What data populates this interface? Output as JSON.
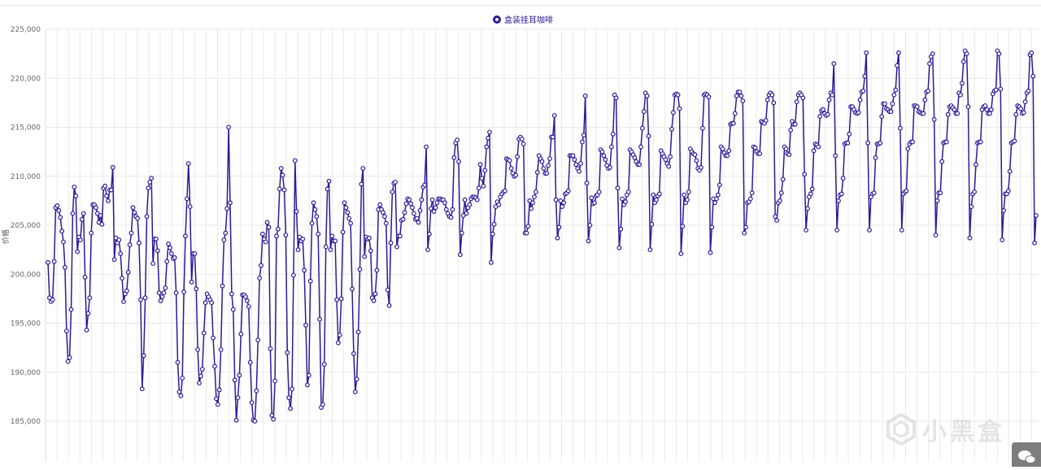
{
  "legend": {
    "label": "盒装挂耳咖啡"
  },
  "watermark": {
    "text": "小黑盒"
  },
  "colors": {
    "series": "#2a1b97",
    "grid": "#e9e9e9",
    "axis_text": "#666666"
  },
  "chart_data": {
    "type": "line",
    "title": "",
    "xlabel": "",
    "ylabel": "价格",
    "ylim": [
      180500,
      225000
    ],
    "y_ticks": [
      "185,000",
      "190,000",
      "195,000",
      "200,000",
      "205,000",
      "210,000",
      "215,000",
      "220,000",
      "225,000"
    ],
    "grid": true,
    "legend_position": "top-center",
    "series": [
      {
        "name": "盒装挂耳咖啡",
        "values": [
          201200,
          197600,
          197200,
          197400,
          201300,
          206800,
          207000,
          206500,
          205800,
          204400,
          203300,
          200700,
          194200,
          191100,
          191500,
          196400,
          206200,
          208900,
          208000,
          202300,
          203800,
          203500,
          205600,
          206200,
          199700,
          194300,
          196000,
          197600,
          204200,
          207100,
          207100,
          206800,
          206200,
          205300,
          206000,
          205100,
          208800,
          209000,
          208000,
          207500,
          208600,
          208600,
          210900,
          201500,
          203700,
          203200,
          203500,
          202100,
          199600,
          197200,
          198000,
          198300,
          200200,
          203000,
          204200,
          206800,
          206300,
          205900,
          205700,
          203200,
          197400,
          188300,
          191700,
          197600,
          205900,
          208800,
          209400,
          209800,
          201100,
          203600,
          203600,
          202400,
          198100,
          197300,
          197700,
          198100,
          198600,
          201300,
          203100,
          202700,
          202100,
          201600,
          201700,
          198100,
          191000,
          188000,
          187600,
          189400,
          198200,
          203900,
          207700,
          211300,
          206900,
          199200,
          202100,
          202100,
          198500,
          192300,
          188900,
          189600,
          190300,
          194000,
          197100,
          198000,
          197700,
          197400,
          197100,
          193500,
          190600,
          187300,
          186700,
          188200,
          192300,
          198800,
          203500,
          204200,
          206700,
          215000,
          207300,
          198000,
          196400,
          189200,
          185100,
          187400,
          189700,
          193900,
          197900,
          197900,
          197700,
          197300,
          196700,
          191000,
          186900,
          185100,
          185000,
          188100,
          193300,
          199600,
          200900,
          204100,
          203600,
          203300,
          205300,
          204800,
          192400,
          185600,
          185200,
          189100,
          203900,
          204600,
          208700,
          210800,
          210100,
          208600,
          204000,
          192000,
          187400,
          186300,
          188300,
          199900,
          211600,
          206400,
          202500,
          203800,
          203400,
          203600,
          200400,
          194800,
          188700,
          189700,
          199300,
          205200,
          207300,
          206600,
          205900,
          204100,
          195400,
          186400,
          186700,
          190800,
          202800,
          208700,
          209500,
          202500,
          203900,
          203400,
          203400,
          197400,
          193000,
          193800,
          197500,
          204300,
          207300,
          206800,
          206300,
          205700,
          205200,
          198500,
          191900,
          188000,
          189300,
          194100,
          200500,
          209200,
          210800,
          201800,
          203800,
          203600,
          203700,
          202400,
          197600,
          197300,
          198000,
          200400,
          206600,
          207100,
          206600,
          206300,
          205900,
          205200,
          198400,
          196800,
          203200,
          208400,
          209300,
          209400,
          202800,
          203900,
          203900,
          205500,
          205600,
          206300,
          207200,
          207700,
          207600,
          207200,
          206800,
          206200,
          205600,
          205700,
          205300,
          206500,
          207600,
          208900,
          209100,
          213000,
          202500,
          204100,
          206700,
          207600,
          206400,
          206800,
          207300,
          207700,
          207700,
          207600,
          207600,
          207300,
          206600,
          206200,
          205900,
          205800,
          206600,
          211900,
          213400,
          213700,
          211500,
          202000,
          204200,
          206000,
          207600,
          206200,
          206800,
          207100,
          207700,
          207900,
          207900,
          207800,
          207600,
          208800,
          211200,
          209800,
          209000,
          210600,
          213000,
          213900,
          214500,
          201200,
          204100,
          205100,
          206900,
          207400,
          207100,
          207900,
          208200,
          208400,
          208500,
          211800,
          211700,
          211600,
          210800,
          210300,
          210000,
          210100,
          212000,
          213800,
          214000,
          213800,
          213300,
          204200,
          204200,
          204900,
          207500,
          206700,
          207300,
          207900,
          208400,
          210400,
          212100,
          211800,
          211500,
          210800,
          210300,
          210300,
          211100,
          211800,
          214000,
          214000,
          216200,
          207600,
          203700,
          204800,
          207500,
          206900,
          207300,
          208200,
          208300,
          208500,
          212100,
          212100,
          212100,
          211700,
          211200,
          210800,
          210500,
          211300,
          213500,
          214200,
          218200,
          209300,
          203400,
          205000,
          207800,
          207200,
          207300,
          208000,
          208100,
          208400,
          212700,
          212500,
          212100,
          211700,
          211100,
          210800,
          210900,
          213000,
          214300,
          218300,
          218000,
          208800,
          202700,
          204600,
          207700,
          207100,
          207400,
          208100,
          208400,
          212700,
          212500,
          212200,
          211900,
          211500,
          211200,
          211200,
          213000,
          214900,
          216600,
          218500,
          218200,
          214100,
          202500,
          205100,
          208100,
          207300,
          207600,
          208000,
          208200,
          212600,
          212300,
          212000,
          211700,
          211300,
          211000,
          212000,
          214800,
          216500,
          218300,
          218400,
          218300,
          216900,
          202100,
          204900,
          208100,
          207300,
          207600,
          208400,
          212800,
          212500,
          212300,
          212200,
          211600,
          210800,
          210600,
          210900,
          214900,
          218300,
          218400,
          218300,
          218100,
          202200,
          204800,
          207700,
          207300,
          207700,
          208100,
          209100,
          213000,
          212800,
          212400,
          212100,
          212100,
          212600,
          215300,
          215400,
          215400,
          216400,
          218200,
          218600,
          218600,
          218200,
          217700,
          204200,
          204800,
          207300,
          207400,
          207700,
          208300,
          213000,
          212900,
          212500,
          212300,
          212300,
          215600,
          215500,
          215400,
          215700,
          217800,
          218300,
          218500,
          218300,
          217500,
          205900,
          205500,
          207300,
          207500,
          208300,
          209700,
          213000,
          212800,
          212300,
          212200,
          214700,
          215600,
          215300,
          215300,
          217600,
          218300,
          218500,
          218300,
          218000,
          210200,
          204500,
          206700,
          207900,
          208200,
          208700,
          212600,
          213300,
          213200,
          213000,
          216100,
          216700,
          216800,
          216400,
          216200,
          216300,
          217800,
          218500,
          218300,
          221500,
          212100,
          204500,
          207500,
          208100,
          208200,
          209800,
          213300,
          213400,
          213400,
          214300,
          217100,
          217100,
          216800,
          216500,
          216400,
          216500,
          217800,
          218600,
          218700,
          220200,
          222600,
          213400,
          204500,
          207900,
          208200,
          208300,
          211900,
          213300,
          213300,
          213400,
          216100,
          217400,
          217400,
          216900,
          216800,
          216600,
          216600,
          217400,
          218300,
          218800,
          221300,
          222600,
          214900,
          204500,
          208200,
          208400,
          208500,
          212800,
          213300,
          213500,
          213500,
          217200,
          217200,
          217100,
          216600,
          216500,
          216400,
          216400,
          217800,
          218600,
          218700,
          221500,
          222200,
          222500,
          215800,
          204000,
          207500,
          208300,
          208300,
          211500,
          213400,
          213500,
          213500,
          216300,
          217100,
          217200,
          217000,
          216800,
          216400,
          216400,
          218500,
          218300,
          219500,
          221700,
          222800,
          222500,
          217100,
          203700,
          206900,
          208200,
          208400,
          211200,
          213400,
          213500,
          213500,
          216800,
          217100,
          217200,
          216800,
          216400,
          216400,
          216800,
          218400,
          218700,
          218800,
          222800,
          222500,
          218900,
          203500,
          206500,
          208200,
          208200,
          208500,
          210500,
          213400,
          213500,
          213600,
          216300,
          217200,
          217100,
          216900,
          216400,
          216500,
          217600,
          218500,
          218700,
          222400,
          222600,
          220200,
          203200,
          206000
        ]
      }
    ]
  }
}
